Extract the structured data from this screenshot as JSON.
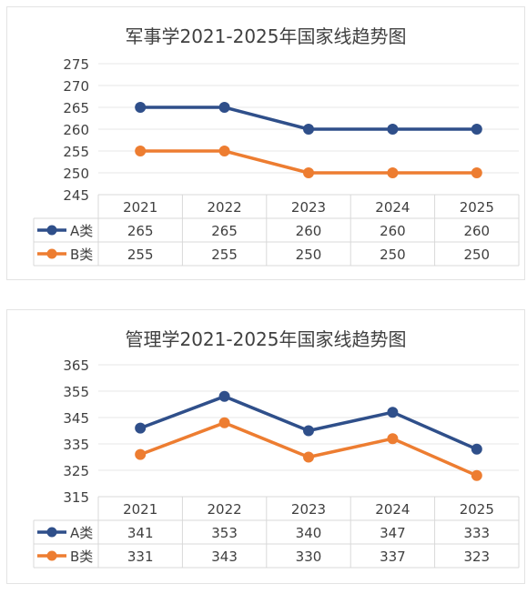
{
  "colors": {
    "series_a": "#2f4f8a",
    "series_b": "#ed7d31",
    "grid": "#d9d9d9",
    "text": "#404040"
  },
  "chart_data": [
    {
      "type": "line",
      "title": "军事学2021-2025年国家线趋势图",
      "categories": [
        "2021",
        "2022",
        "2023",
        "2024",
        "2025"
      ],
      "ylim": [
        245,
        275
      ],
      "yticks": [
        245,
        250,
        255,
        260,
        265,
        270,
        275
      ],
      "series": [
        {
          "name": "A类",
          "values": [
            265,
            265,
            260,
            260,
            260
          ]
        },
        {
          "name": "B类",
          "values": [
            255,
            255,
            250,
            250,
            250
          ]
        }
      ],
      "grid": true,
      "legend": "data-table"
    },
    {
      "type": "line",
      "title": "管理学2021-2025年国家线趋势图",
      "categories": [
        "2021",
        "2022",
        "2023",
        "2024",
        "2025"
      ],
      "ylim": [
        315,
        365
      ],
      "yticks": [
        315,
        325,
        335,
        345,
        355,
        365
      ],
      "series": [
        {
          "name": "A类",
          "values": [
            341,
            353,
            340,
            347,
            333
          ]
        },
        {
          "name": "B类",
          "values": [
            331,
            343,
            330,
            337,
            323
          ]
        }
      ],
      "grid": true,
      "legend": "data-table"
    }
  ]
}
